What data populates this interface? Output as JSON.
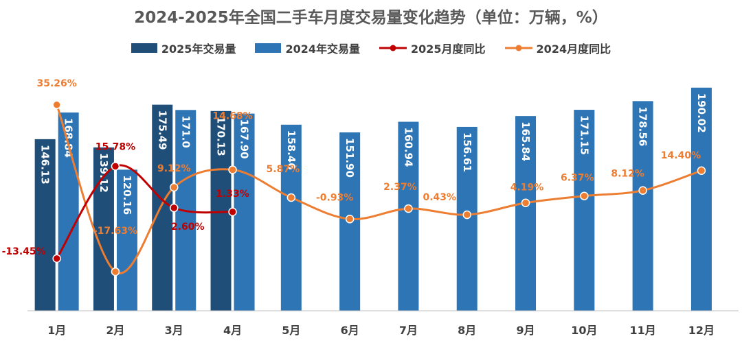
{
  "chart_data": {
    "type": "bar",
    "title": "2024-2025年全国二手车月度交易量变化趋势（单位：万辆，%）",
    "categories": [
      "1月",
      "2月",
      "3月",
      "4月",
      "5月",
      "6月",
      "7月",
      "8月",
      "9月",
      "10月",
      "11月",
      "12月"
    ],
    "ylim": [
      0,
      215
    ],
    "yoy_lim": [
      -30,
      50
    ],
    "grid": false,
    "legend_position": "top",
    "series": [
      {
        "name": "2025年交易量",
        "kind": "bar",
        "color": "#1f4e79",
        "values": [
          146.13,
          139.12,
          175.49,
          170.13,
          null,
          null,
          null,
          null,
          null,
          null,
          null,
          null
        ],
        "labels": [
          "146.13",
          "139.12",
          "175.49",
          "170.13"
        ]
      },
      {
        "name": "2024年交易量",
        "kind": "bar",
        "color": "#2e75b6",
        "values": [
          168.84,
          120.16,
          171.0,
          167.9,
          158.46,
          151.9,
          160.94,
          156.61,
          165.84,
          171.15,
          178.56,
          190.02
        ],
        "labels": [
          "168.84",
          "120.16",
          "171.0",
          "167.90",
          "158.46",
          "151.90",
          "160.94",
          "156.61",
          "165.84",
          "171.15",
          "178.56",
          "190.02"
        ]
      },
      {
        "name": "2025月度同比",
        "kind": "line",
        "color": "#c00000",
        "values": [
          -13.45,
          15.78,
          2.6,
          1.33,
          null,
          null,
          null,
          null,
          null,
          null,
          null,
          null
        ],
        "labels": [
          "-13.45%",
          "15.78%",
          "2.60%",
          "1.33%"
        ]
      },
      {
        "name": "2024月度同比",
        "kind": "line",
        "color": "#ed7d31",
        "values": [
          35.26,
          -17.63,
          9.12,
          14.68,
          5.87,
          -0.93,
          2.37,
          0.43,
          4.19,
          6.37,
          8.12,
          14.4
        ],
        "labels": [
          "35.26%",
          "-17.63%",
          "9.12%",
          "14.68%",
          "5.87%",
          "-0.93%",
          "2.37%",
          "0.43%",
          "4.19%",
          "6.37%",
          "8.12%",
          "14.40%"
        ]
      }
    ]
  }
}
